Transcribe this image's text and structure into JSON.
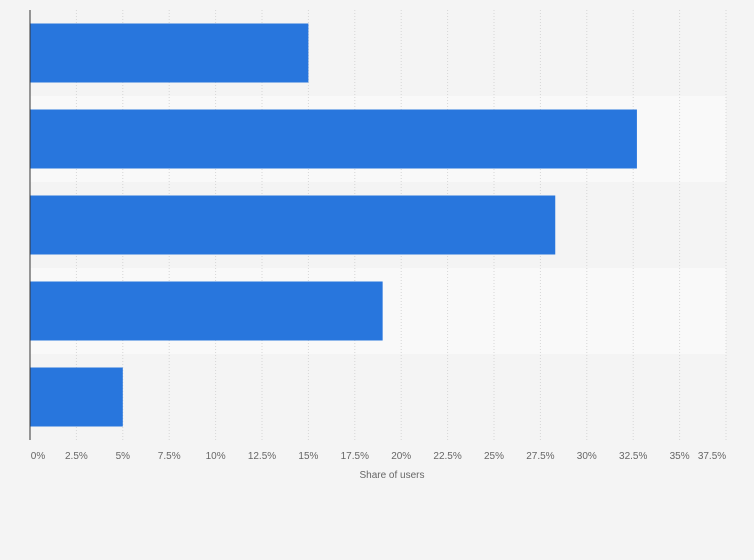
{
  "chart_data": {
    "type": "bar",
    "orientation": "horizontal",
    "categories": [
      "",
      "",
      "",
      "",
      ""
    ],
    "values": [
      15.0,
      32.7,
      28.3,
      19.0,
      5.0
    ],
    "xlabel": "Share of users",
    "ylabel": "",
    "xlim": [
      0,
      37.5
    ],
    "xticks": [
      "0%",
      "2.5%",
      "5%",
      "7.5%",
      "10%",
      "12.5%",
      "15%",
      "17.5%",
      "20%",
      "22.5%",
      "25%",
      "27.5%",
      "30%",
      "32.5%",
      "35%",
      "37.5%"
    ],
    "grid": true,
    "bar_color": "#2876dd",
    "band_colors": [
      "#f4f4f4",
      "#f9f9f9"
    ]
  }
}
